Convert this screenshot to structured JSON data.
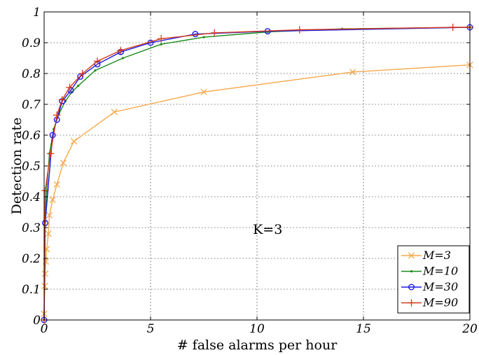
{
  "chart_data": {
    "type": "line",
    "title": "",
    "xlabel": "# false alarms per hour",
    "ylabel": "Detection rate",
    "xlim": [
      0,
      20
    ],
    "ylim": [
      0,
      1
    ],
    "xticks": [
      "0",
      "5",
      "10",
      "15",
      "20"
    ],
    "yticks": [
      "0",
      "0.1",
      "0.2",
      "0.3",
      "0.4",
      "0.5",
      "0.6",
      "0.7",
      "0.8",
      "0.9",
      "1"
    ],
    "grid": true,
    "legend_position": "bottom-right",
    "annotation": "K=3",
    "series": [
      {
        "name": "M=3",
        "color": "#f5a84a",
        "marker": "x",
        "points": [
          [
            0,
            0.02
          ],
          [
            0.03,
            0.11
          ],
          [
            0.05,
            0.15
          ],
          [
            0.08,
            0.19
          ],
          [
            0.12,
            0.23
          ],
          [
            0.2,
            0.28
          ],
          [
            0.25,
            0.34
          ],
          [
            0.4,
            0.39
          ],
          [
            0.6,
            0.44
          ],
          [
            0.9,
            0.51
          ],
          [
            1.4,
            0.58
          ],
          [
            3.3,
            0.675
          ],
          [
            7.5,
            0.74
          ],
          [
            14.5,
            0.805
          ],
          [
            20,
            0.828
          ]
        ]
      },
      {
        "name": "M=10",
        "color": "#1a8a1a",
        "marker": "dot",
        "points": [
          [
            0,
            0.0
          ],
          [
            0.05,
            0.32
          ],
          [
            0.12,
            0.42
          ],
          [
            0.25,
            0.54
          ],
          [
            0.45,
            0.62
          ],
          [
            0.7,
            0.67
          ],
          [
            1.0,
            0.71
          ],
          [
            1.3,
            0.74
          ],
          [
            1.6,
            0.76
          ],
          [
            2.4,
            0.81
          ],
          [
            3.7,
            0.85
          ],
          [
            5.5,
            0.895
          ],
          [
            7.5,
            0.918
          ],
          [
            10.5,
            0.935
          ],
          [
            14,
            0.945
          ],
          [
            20,
            0.95
          ]
        ]
      },
      {
        "name": "M=30",
        "color": "#1a1ae6",
        "marker": "circle",
        "points": [
          [
            0,
            0.0
          ],
          [
            0.05,
            0.315
          ],
          [
            0.4,
            0.6
          ],
          [
            0.6,
            0.65
          ],
          [
            0.85,
            0.71
          ],
          [
            1.25,
            0.745
          ],
          [
            1.7,
            0.79
          ],
          [
            2.5,
            0.83
          ],
          [
            3.6,
            0.87
          ],
          [
            5.0,
            0.9
          ],
          [
            7.1,
            0.928
          ],
          [
            10.5,
            0.937
          ],
          [
            20,
            0.95
          ]
        ]
      },
      {
        "name": "M=90",
        "color": "#d63a1a",
        "marker": "plus",
        "points": [
          [
            0,
            0.0
          ],
          [
            0.05,
            0.42
          ],
          [
            0.3,
            0.54
          ],
          [
            0.6,
            0.665
          ],
          [
            0.85,
            0.715
          ],
          [
            1.2,
            0.755
          ],
          [
            1.8,
            0.8
          ],
          [
            2.5,
            0.84
          ],
          [
            3.6,
            0.875
          ],
          [
            5.5,
            0.913
          ],
          [
            8.0,
            0.932
          ],
          [
            12,
            0.942
          ],
          [
            19.2,
            0.95
          ],
          [
            20,
            0.95
          ]
        ]
      }
    ]
  }
}
